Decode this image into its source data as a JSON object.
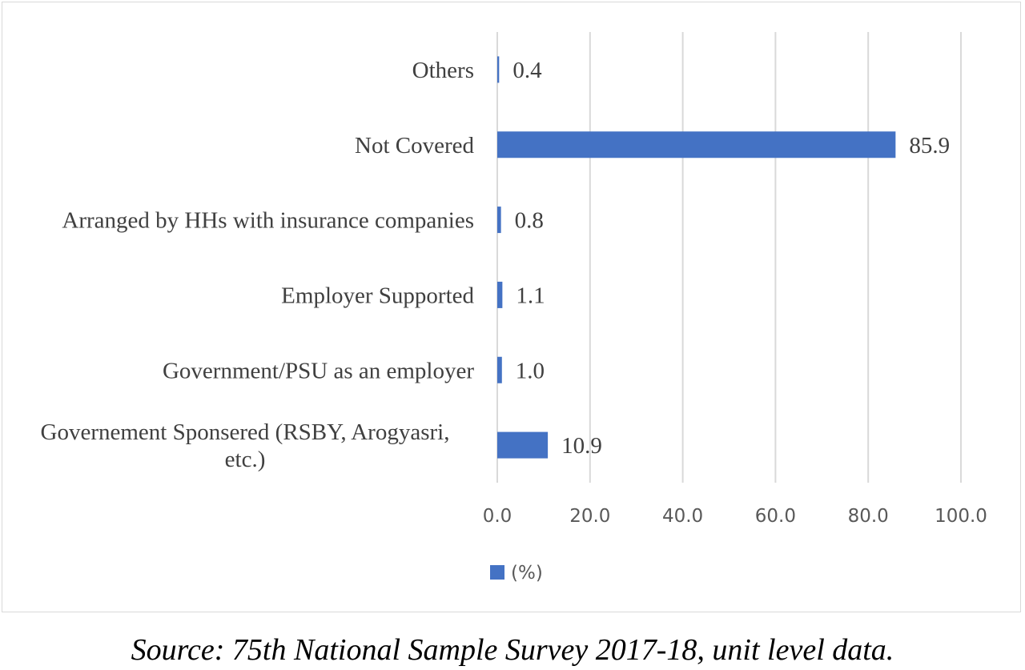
{
  "chart_data": {
    "type": "bar",
    "orientation": "horizontal",
    "categories": [
      [
        "Governement Sponsered (RSBY, Arogyasri,",
        "etc.)"
      ],
      [
        "Government/PSU as an employer"
      ],
      [
        "Employer Supported"
      ],
      [
        "Arranged by HHs with insurance companies"
      ],
      [
        "Not Covered"
      ],
      [
        "Others"
      ]
    ],
    "series": [
      {
        "name": "(%)",
        "values": [
          10.9,
          1.0,
          1.1,
          0.8,
          85.9,
          0.4
        ],
        "labels": [
          "10.9",
          "1.0",
          "1.1",
          "0.8",
          "85.9",
          "0.4"
        ]
      }
    ],
    "xlim": [
      0,
      100
    ],
    "x_ticks": [
      "0.0",
      "20.0",
      "40.0",
      "60.0",
      "80.0",
      "100.0"
    ],
    "grid": true,
    "legend_position": "bottom",
    "bar_color": "#4472c4"
  },
  "source": "Source: 75th National Sample Survey 2017-18, unit level data."
}
